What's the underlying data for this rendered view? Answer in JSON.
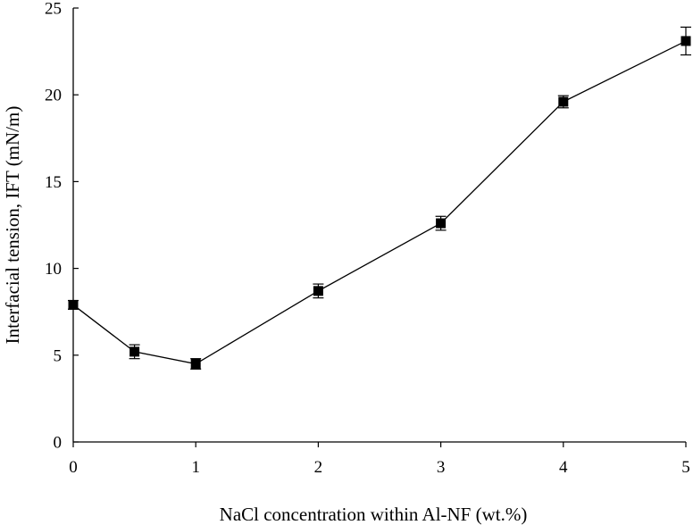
{
  "chart_data": {
    "type": "line",
    "title": "",
    "xlabel": "NaCl concentration within Al-NF (wt.%)",
    "ylabel": "Interfacial tension, IFT (mN/m)",
    "xlim": [
      0,
      5
    ],
    "ylim": [
      0,
      25
    ],
    "xticks": [
      0,
      1,
      2,
      3,
      4,
      5
    ],
    "yticks": [
      0,
      5,
      10,
      15,
      20,
      25
    ],
    "grid": false,
    "legend": "none",
    "marker": "square",
    "color": "#000000",
    "series": [
      {
        "x": [
          0,
          0.5,
          1,
          2,
          3,
          4,
          5
        ],
        "y": [
          7.9,
          5.2,
          4.5,
          8.7,
          12.6,
          19.6,
          23.1
        ],
        "error": [
          0.25,
          0.4,
          0.3,
          0.4,
          0.4,
          0.35,
          0.8
        ]
      }
    ]
  }
}
